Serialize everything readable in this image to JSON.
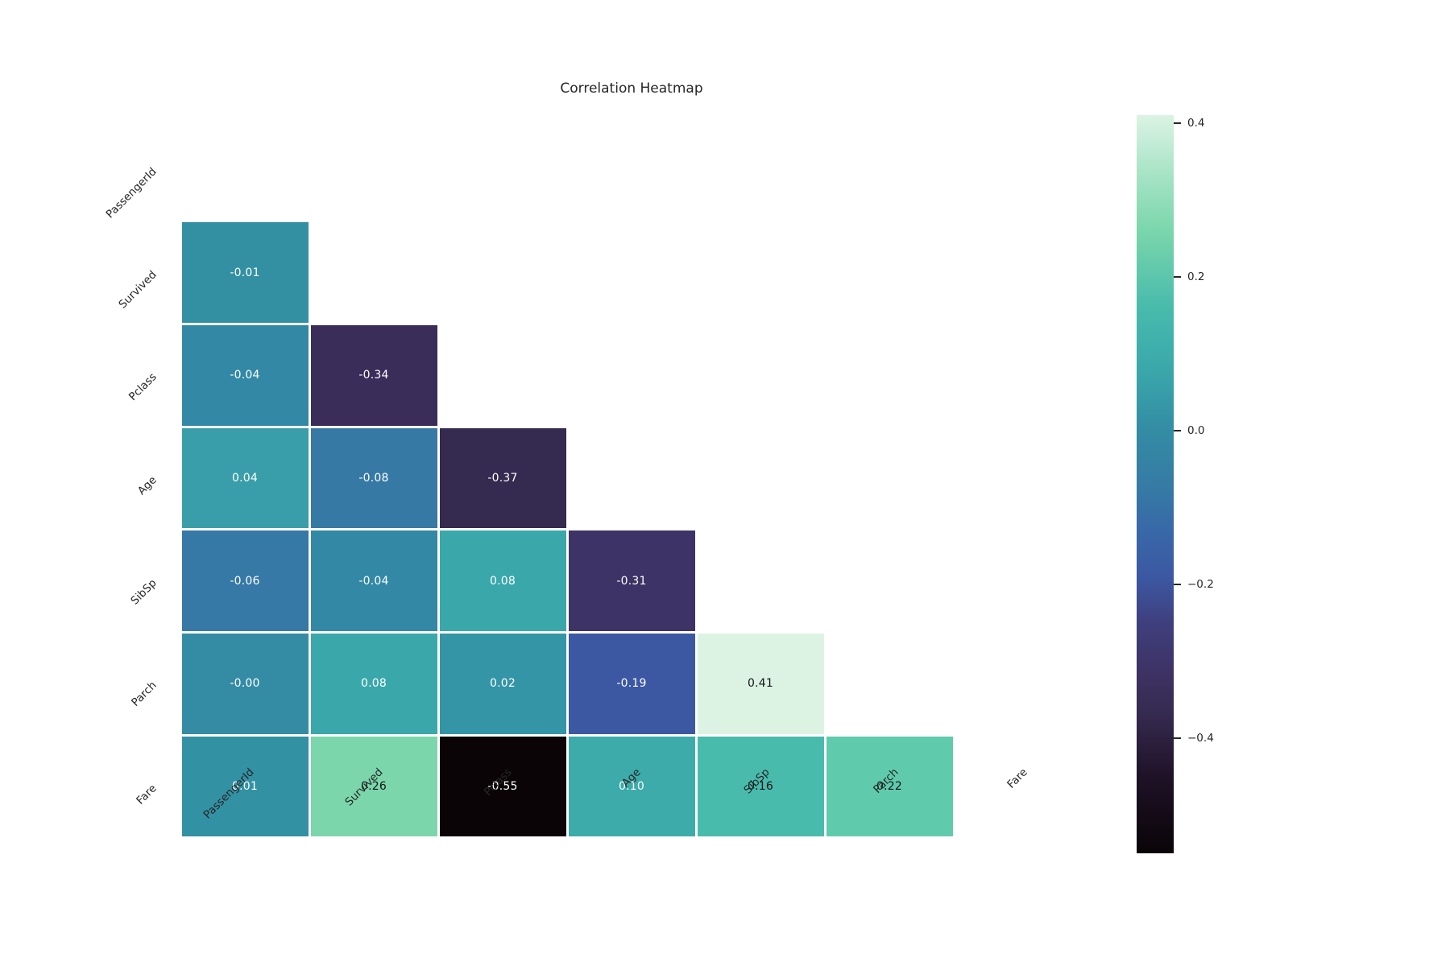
{
  "chart_data": {
    "type": "heatmap",
    "title": "Correlation Heatmap",
    "variables": [
      "PassengerId",
      "Survived",
      "Pclass",
      "Age",
      "SibSp",
      "Parch",
      "Fare"
    ],
    "x_tick_labels": [
      "PassengerId",
      "Survived",
      "Pclass",
      "Age",
      "SibSp",
      "Parch",
      "Fare"
    ],
    "y_tick_labels": [
      "PassengerId",
      "Survived",
      "Pclass",
      "Age",
      "SibSp",
      "Parch",
      "Fare"
    ],
    "mask": "upper triangle and diagonal hidden (lower triangle shown)",
    "colormap": "mako",
    "vmin": -0.55,
    "vmax": 0.41,
    "grid": "white gridlines between cells",
    "legend_position": "colorbar right",
    "cells": [
      {
        "row": 1,
        "col": 0,
        "row_name": "Survived",
        "col_name": "PassengerId",
        "value": -0.01,
        "label": "-0.01",
        "color": "#3390A3",
        "text_color": "#FFFFFF"
      },
      {
        "row": 2,
        "col": 0,
        "row_name": "Pclass",
        "col_name": "PassengerId",
        "value": -0.04,
        "label": "-0.04",
        "color": "#3389A5",
        "text_color": "#FFFFFF"
      },
      {
        "row": 2,
        "col": 1,
        "row_name": "Pclass",
        "col_name": "Survived",
        "value": -0.34,
        "label": "-0.34",
        "color": "#3A2D59",
        "text_color": "#FFFFFF"
      },
      {
        "row": 3,
        "col": 0,
        "row_name": "Age",
        "col_name": "PassengerId",
        "value": 0.04,
        "label": "0.04",
        "color": "#399EA9",
        "text_color": "#FFFFFF"
      },
      {
        "row": 3,
        "col": 1,
        "row_name": "Age",
        "col_name": "Survived",
        "value": -0.08,
        "label": "-0.08",
        "color": "#3679A5",
        "text_color": "#FFFFFF"
      },
      {
        "row": 3,
        "col": 2,
        "row_name": "Age",
        "col_name": "Pclass",
        "value": -0.37,
        "label": "-0.37",
        "color": "#352A4F",
        "text_color": "#FFFFFF"
      },
      {
        "row": 4,
        "col": 0,
        "row_name": "SibSp",
        "col_name": "PassengerId",
        "value": -0.06,
        "label": "-0.06",
        "color": "#3678A6",
        "text_color": "#FFFFFF"
      },
      {
        "row": 4,
        "col": 1,
        "row_name": "SibSp",
        "col_name": "Survived",
        "value": -0.04,
        "label": "-0.04",
        "color": "#3389A5",
        "text_color": "#FFFFFF"
      },
      {
        "row": 4,
        "col": 2,
        "row_name": "SibSp",
        "col_name": "Pclass",
        "value": 0.08,
        "label": "0.08",
        "color": "#3AA8AB",
        "text_color": "#FFFFFF"
      },
      {
        "row": 4,
        "col": 3,
        "row_name": "SibSp",
        "col_name": "Age",
        "value": -0.31,
        "label": "-0.31",
        "color": "#3E3366",
        "text_color": "#FFFFFF"
      },
      {
        "row": 5,
        "col": 0,
        "row_name": "Parch",
        "col_name": "PassengerId",
        "value": -0.0,
        "label": "-0.00",
        "color": "#338CA4",
        "text_color": "#FFFFFF"
      },
      {
        "row": 5,
        "col": 1,
        "row_name": "Parch",
        "col_name": "Survived",
        "value": 0.08,
        "label": "0.08",
        "color": "#3AA8AB",
        "text_color": "#FFFFFF"
      },
      {
        "row": 5,
        "col": 2,
        "row_name": "Parch",
        "col_name": "Pclass",
        "value": 0.02,
        "label": "0.02",
        "color": "#3495A6",
        "text_color": "#FFFFFF"
      },
      {
        "row": 5,
        "col": 3,
        "row_name": "Parch",
        "col_name": "Age",
        "value": -0.19,
        "label": "-0.19",
        "color": "#3C58A3",
        "text_color": "#FFFFFF"
      },
      {
        "row": 5,
        "col": 4,
        "row_name": "Parch",
        "col_name": "SibSp",
        "value": 0.41,
        "label": "0.41",
        "color": "#DCF3E4",
        "text_color": "#141414"
      },
      {
        "row": 6,
        "col": 0,
        "row_name": "Fare",
        "col_name": "PassengerId",
        "value": 0.01,
        "label": "0.01",
        "color": "#3391A4",
        "text_color": "#FFFFFF"
      },
      {
        "row": 6,
        "col": 1,
        "row_name": "Fare",
        "col_name": "Survived",
        "value": 0.26,
        "label": "0.26",
        "color": "#7BD6AC",
        "text_color": "#141414"
      },
      {
        "row": 6,
        "col": 2,
        "row_name": "Fare",
        "col_name": "Pclass",
        "value": -0.55,
        "label": "-0.55",
        "color": "#0A0407",
        "text_color": "#FFFFFF"
      },
      {
        "row": 6,
        "col": 3,
        "row_name": "Fare",
        "col_name": "Age",
        "value": 0.1,
        "label": "0.10",
        "color": "#3CABAA",
        "text_color": "#FFFFFF"
      },
      {
        "row": 6,
        "col": 4,
        "row_name": "Fare",
        "col_name": "SibSp",
        "value": 0.16,
        "label": "0.16",
        "color": "#48BBAC",
        "text_color": "#141414"
      },
      {
        "row": 6,
        "col": 5,
        "row_name": "Fare",
        "col_name": "Parch",
        "value": 0.22,
        "label": "0.22",
        "color": "#5FCBAC",
        "text_color": "#141414"
      }
    ],
    "colorbar": {
      "ticks": [
        {
          "label": "0.4",
          "value": 0.4
        },
        {
          "label": "0.2",
          "value": 0.2
        },
        {
          "label": "0.0",
          "value": 0.0
        },
        {
          "label": "−0.2",
          "value": -0.2
        },
        {
          "label": "−0.4",
          "value": -0.4
        }
      ],
      "gradient_stops": [
        {
          "value": -0.55,
          "color": "#0A0407"
        },
        {
          "value": -0.45,
          "color": "#1F1228"
        },
        {
          "value": -0.37,
          "color": "#352A4F"
        },
        {
          "value": -0.31,
          "color": "#3E3366"
        },
        {
          "value": -0.25,
          "color": "#3F3F7E"
        },
        {
          "value": -0.19,
          "color": "#3C58A3"
        },
        {
          "value": -0.13,
          "color": "#3868A8"
        },
        {
          "value": -0.08,
          "color": "#3679A5"
        },
        {
          "value": 0.0,
          "color": "#338CA4"
        },
        {
          "value": 0.08,
          "color": "#3AA8AB"
        },
        {
          "value": 0.16,
          "color": "#48BBAC"
        },
        {
          "value": 0.26,
          "color": "#7BD6AC"
        },
        {
          "value": 0.33,
          "color": "#A5E3C4"
        },
        {
          "value": 0.41,
          "color": "#DCF3E4"
        }
      ]
    }
  },
  "colors": {
    "background": "#FFFFFF",
    "axis_text": "#262626",
    "gridline": "#FFFFFF"
  }
}
